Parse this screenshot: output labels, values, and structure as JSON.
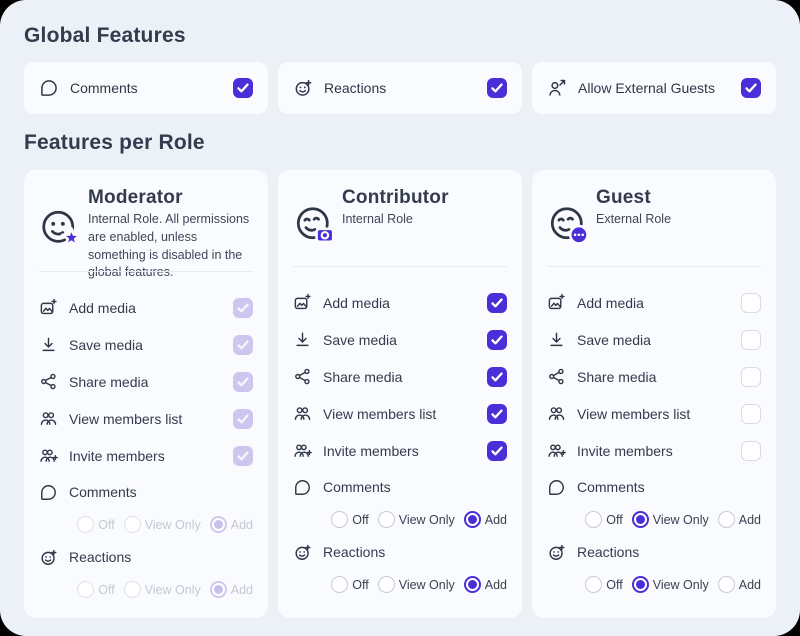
{
  "accent_color": "#4b2ed7",
  "page_background": "#ecf0f7",
  "card_background": "#fafbfe",
  "global_features": {
    "title": "Global Features",
    "items": [
      {
        "label": "Comments",
        "icon": "comment-icon",
        "checked": true,
        "disabled": false
      },
      {
        "label": "Reactions",
        "icon": "reaction-add-icon",
        "checked": true,
        "disabled": false
      },
      {
        "label": "Allow External Guests",
        "icon": "external-guest-icon",
        "checked": true,
        "disabled": false
      }
    ]
  },
  "features_per_role": {
    "title": "Features per Role",
    "roles": [
      {
        "name": "Moderator",
        "icon": "moderator-face-star-icon",
        "description": "Internal Role. All permissions are enabled, unless something is disabled in the global features.",
        "checkboxes": [
          {
            "label": "Add media",
            "icon": "add-media-icon",
            "checked": true,
            "disabled": true
          },
          {
            "label": "Save media",
            "icon": "save-media-icon",
            "checked": true,
            "disabled": true
          },
          {
            "label": "Share media",
            "icon": "share-media-icon",
            "checked": true,
            "disabled": true
          },
          {
            "label": "View members list",
            "icon": "members-icon",
            "checked": true,
            "disabled": true
          },
          {
            "label": "Invite members",
            "icon": "invite-members-icon",
            "checked": true,
            "disabled": true
          }
        ],
        "radio_groups": [
          {
            "label": "Comments",
            "icon": "comment-icon",
            "options": [
              "Off",
              "View Only",
              "Add"
            ],
            "selected": "Add",
            "disabled": true
          },
          {
            "label": "Reactions",
            "icon": "reaction-add-icon",
            "options": [
              "Off",
              "View Only",
              "Add"
            ],
            "selected": "Add",
            "disabled": true
          }
        ]
      },
      {
        "name": "Contributor",
        "icon": "contributor-face-camera-icon",
        "description": "Internal Role",
        "checkboxes": [
          {
            "label": "Add media",
            "icon": "add-media-icon",
            "checked": true,
            "disabled": false
          },
          {
            "label": "Save media",
            "icon": "save-media-icon",
            "checked": true,
            "disabled": false
          },
          {
            "label": "Share media",
            "icon": "share-media-icon",
            "checked": true,
            "disabled": false
          },
          {
            "label": "View members list",
            "icon": "members-icon",
            "checked": true,
            "disabled": false
          },
          {
            "label": "Invite members",
            "icon": "invite-members-icon",
            "checked": true,
            "disabled": false
          }
        ],
        "radio_groups": [
          {
            "label": "Comments",
            "icon": "comment-icon",
            "options": [
              "Off",
              "View Only",
              "Add"
            ],
            "selected": "Add",
            "disabled": false
          },
          {
            "label": "Reactions",
            "icon": "reaction-add-icon",
            "options": [
              "Off",
              "View Only",
              "Add"
            ],
            "selected": "Add",
            "disabled": false
          }
        ]
      },
      {
        "name": "Guest",
        "icon": "guest-face-chat-icon",
        "description": "External Role",
        "checkboxes": [
          {
            "label": "Add media",
            "icon": "add-media-icon",
            "checked": false,
            "disabled": false
          },
          {
            "label": "Save media",
            "icon": "save-media-icon",
            "checked": false,
            "disabled": false
          },
          {
            "label": "Share media",
            "icon": "share-media-icon",
            "checked": false,
            "disabled": false
          },
          {
            "label": "View members list",
            "icon": "members-icon",
            "checked": false,
            "disabled": false
          },
          {
            "label": "Invite members",
            "icon": "invite-members-icon",
            "checked": false,
            "disabled": false
          }
        ],
        "radio_groups": [
          {
            "label": "Comments",
            "icon": "comment-icon",
            "options": [
              "Off",
              "View Only",
              "Add"
            ],
            "selected": "View Only",
            "disabled": false
          },
          {
            "label": "Reactions",
            "icon": "reaction-add-icon",
            "options": [
              "Off",
              "View Only",
              "Add"
            ],
            "selected": "View Only",
            "disabled": false
          }
        ]
      }
    ]
  }
}
